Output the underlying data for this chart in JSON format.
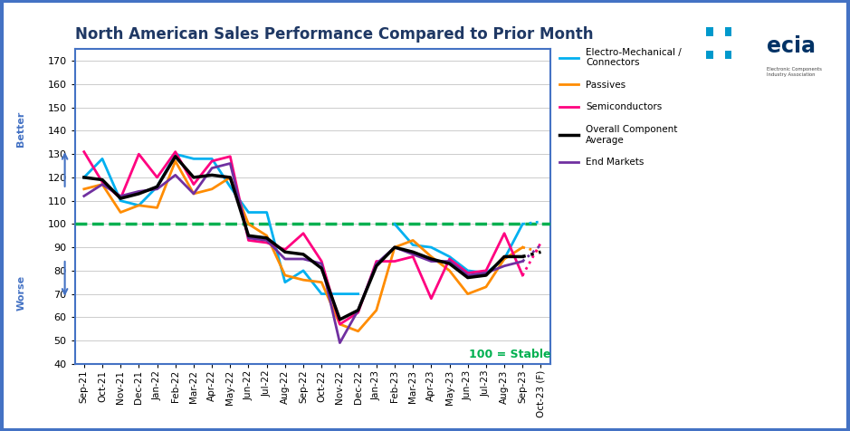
{
  "title": "North American Sales Performance Compared to Prior Month",
  "x_labels": [
    "Sep-21",
    "Oct-21",
    "Nov-21",
    "Dec-21",
    "Jan-22",
    "Feb-22",
    "Mar-22",
    "Apr-22",
    "May-22",
    "Jun-22",
    "Jul-22",
    "Aug-22",
    "Sep-22",
    "Oct-22",
    "Nov-22",
    "Dec-22",
    "Jan-23",
    "Feb-23",
    "Mar-23",
    "Apr-23",
    "May-23",
    "Jun-23",
    "Jul-23",
    "Aug-23",
    "Sep-23",
    "Oct-23 (F)"
  ],
  "ylim": [
    40,
    175
  ],
  "yticks": [
    40,
    50,
    60,
    70,
    80,
    90,
    100,
    110,
    120,
    130,
    140,
    150,
    160,
    170
  ],
  "electro_mech": [
    120,
    128,
    110,
    108,
    116,
    130,
    128,
    128,
    116,
    105,
    105,
    75,
    80,
    70,
    70,
    70,
    null,
    100,
    91,
    90,
    86,
    80,
    79,
    85,
    100,
    101
  ],
  "passives": [
    115,
    117,
    105,
    108,
    107,
    127,
    113,
    115,
    120,
    100,
    95,
    78,
    76,
    75,
    57,
    54,
    63,
    90,
    93,
    86,
    80,
    70,
    73,
    85,
    90,
    88
  ],
  "semiconductors": [
    131,
    118,
    111,
    130,
    120,
    131,
    117,
    127,
    129,
    93,
    92,
    89,
    96,
    84,
    57,
    62,
    84,
    84,
    86,
    68,
    85,
    79,
    80,
    96,
    78,
    92
  ],
  "overall_avg": [
    120,
    119,
    111,
    113,
    116,
    129,
    120,
    121,
    120,
    95,
    94,
    88,
    87,
    81,
    59,
    63,
    82,
    90,
    88,
    85,
    83,
    77,
    78,
    86,
    86,
    88
  ],
  "end_markets": [
    112,
    117,
    112,
    114,
    115,
    121,
    113,
    124,
    126,
    94,
    93,
    85,
    85,
    83,
    49,
    63,
    83,
    90,
    87,
    84,
    84,
    78,
    79,
    82,
    84,
    91
  ],
  "color_electro": "#00B0F0",
  "color_passives": "#FF8C00",
  "color_semi": "#FF0080",
  "color_overall": "#000000",
  "color_end": "#7030A0",
  "color_stable": "#00B050",
  "background_color": "#FFFFFF",
  "border_color": "#4472C4",
  "title_color": "#1F3864",
  "ylabel_better": "Better",
  "ylabel_worse": "Worse",
  "stable_label": "100 = Stable",
  "legend_labels": [
    "Electro-Mechanical /\nConnectors",
    "Passives",
    "Semiconductors",
    "Overall Component\nAverage",
    "End Markets"
  ]
}
